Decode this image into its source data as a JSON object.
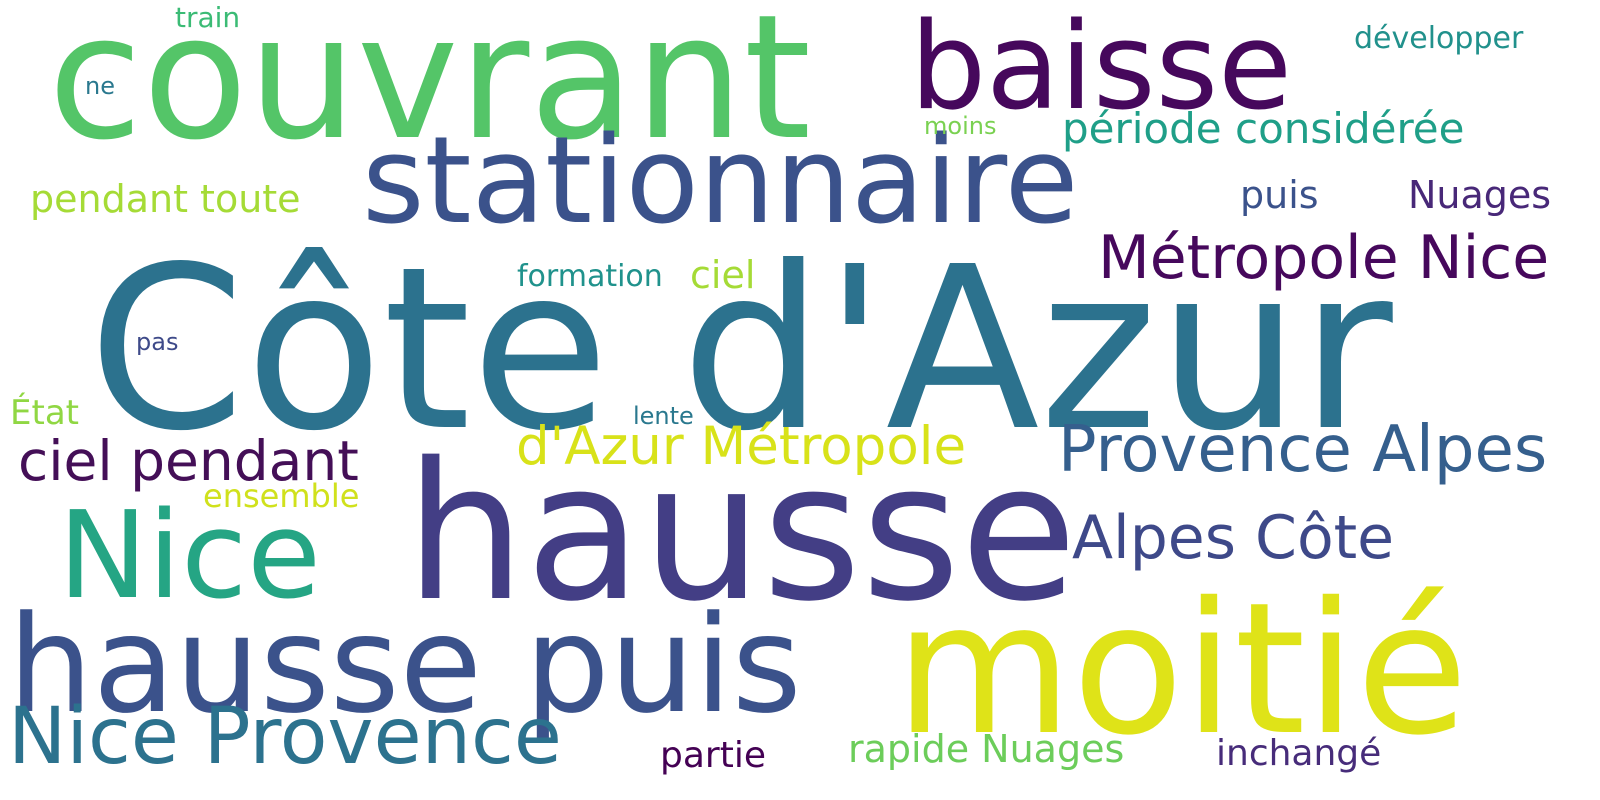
{
  "words": [
    {
      "text": "couvrant",
      "color": "#54c568"
    },
    {
      "text": "baisse",
      "color": "#46085c"
    },
    {
      "text": "stationnaire",
      "color": "#3b528b"
    },
    {
      "text": "Côte d'Azur",
      "color": "#2c728e"
    },
    {
      "text": "hausse",
      "color": "#433e85"
    },
    {
      "text": "Nice",
      "color": "#25a584"
    },
    {
      "text": "hausse puis",
      "color": "#3b528b"
    },
    {
      "text": "moitié",
      "color": "#dfe318"
    },
    {
      "text": "Nice Provence",
      "color": "#2c728e"
    },
    {
      "text": "Métropole Nice",
      "color": "#46085c"
    },
    {
      "text": "période considérée",
      "color": "#1f9f88"
    },
    {
      "text": "Provence Alpes",
      "color": "#355f8d"
    },
    {
      "text": "d'Azur Métropole",
      "color": "#d8e219"
    },
    {
      "text": "Alpes Côte",
      "color": "#3e4989"
    },
    {
      "text": "ciel pendant",
      "color": "#440f57"
    },
    {
      "text": "pendant toute",
      "color": "#a5db36"
    },
    {
      "text": "puis",
      "color": "#3b528b"
    },
    {
      "text": "Nuages",
      "color": "#482878"
    },
    {
      "text": "ciel",
      "color": "#a5db36"
    },
    {
      "text": "formation",
      "color": "#20928c"
    },
    {
      "text": "développer",
      "color": "#21918c"
    },
    {
      "text": "train",
      "color": "#3bbb75"
    },
    {
      "text": "ne",
      "color": "#2a788e"
    },
    {
      "text": "moins",
      "color": "#7ad151"
    },
    {
      "text": "pas",
      "color": "#3e4a89"
    },
    {
      "text": "État",
      "color": "#90d743"
    },
    {
      "text": "lente",
      "color": "#2a788e"
    },
    {
      "text": "ensemble",
      "color": "#d0e11c"
    },
    {
      "text": "rapide Nuages",
      "color": "#6ccd5a"
    },
    {
      "text": "partie",
      "color": "#440154"
    },
    {
      "text": "inchangé",
      "color": "#472c7a"
    }
  ]
}
